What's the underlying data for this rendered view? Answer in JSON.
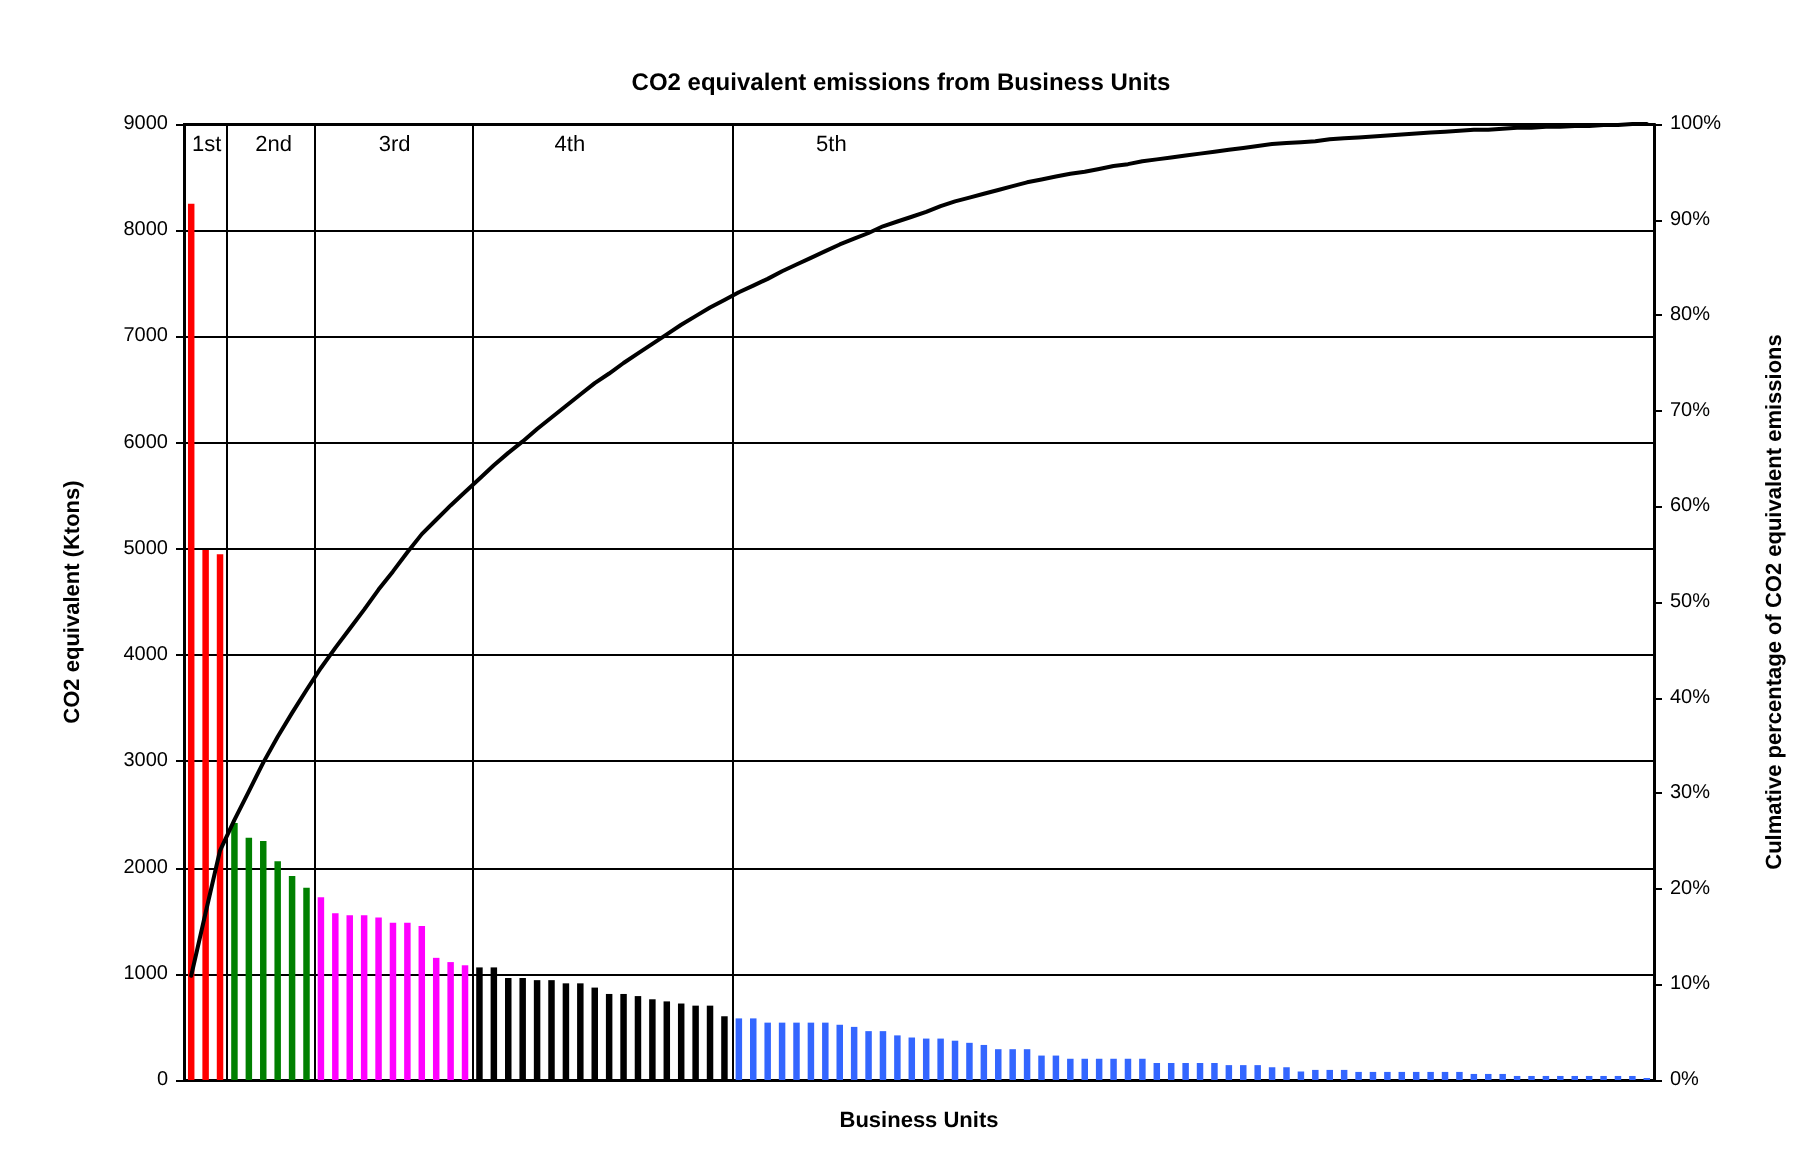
{
  "chart_data": {
    "type": "bar",
    "title": "CO2 equivalent emissions from Business Units",
    "xlabel": "Business Units",
    "ylabel": "CO2 equivalent (Ktons)",
    "y2label": "Culmative percentage of CO2 equivalent emissions",
    "annotations": [
      "1st",
      "2nd",
      "3rd",
      "4th",
      "5th"
    ],
    "categories": [
      null,
      null,
      null,
      null,
      null,
      null,
      null,
      null,
      null,
      null,
      null,
      null,
      null,
      null,
      null,
      null,
      null,
      null,
      null,
      null,
      null,
      null,
      null,
      null,
      null,
      null,
      null,
      null,
      null,
      null,
      null,
      null,
      null,
      null,
      null,
      null,
      null,
      null,
      null,
      null,
      null,
      null,
      null,
      null,
      null,
      null,
      null,
      null,
      null,
      null,
      null,
      null,
      null,
      null,
      null,
      null,
      null,
      null,
      null,
      null,
      null,
      null,
      null,
      null,
      null,
      null,
      null,
      null,
      null,
      null,
      null,
      null,
      null,
      null,
      null,
      null,
      null,
      null,
      null,
      null,
      null,
      null,
      null,
      null,
      null,
      null,
      null,
      null,
      null,
      null,
      null,
      null,
      null,
      null,
      null,
      null,
      null,
      null,
      null,
      null,
      null,
      null
    ],
    "ylim": [
      0,
      9000
    ],
    "yticks": [
      0,
      1000,
      2000,
      3000,
      4000,
      5000,
      6000,
      7000,
      8000,
      9000
    ],
    "y2lim": [
      0,
      100
    ],
    "y2ticks": [
      {
        "value": 0,
        "label": "0%"
      },
      {
        "value": 10,
        "label": "10%"
      },
      {
        "value": 20,
        "label": "20%"
      },
      {
        "value": 30,
        "label": "30%"
      },
      {
        "value": 40,
        "label": "40%"
      },
      {
        "value": 50,
        "label": "50%"
      },
      {
        "value": 60,
        "label": "60%"
      },
      {
        "value": 70,
        "label": "70%"
      },
      {
        "value": 80,
        "label": "80%"
      },
      {
        "value": 90,
        "label": "90%"
      },
      {
        "value": 100,
        "label": "100%"
      }
    ],
    "grid": "y",
    "marker": "none",
    "line_style": "solid",
    "series": [
      {
        "values": [
          8250,
          4990,
          4950,
          2420,
          2280,
          2250,
          2060,
          1920,
          1810,
          1720,
          1570,
          1550,
          1550,
          1530,
          1480,
          1480,
          1450,
          1150,
          1110,
          1080,
          1060,
          1060,
          960,
          960,
          940,
          940,
          910,
          910,
          870,
          810,
          810,
          790,
          760,
          740,
          720,
          700,
          700,
          600,
          580,
          580,
          540,
          540,
          540,
          540,
          540,
          520,
          500,
          460,
          460,
          420,
          400,
          390,
          390,
          370,
          350,
          330,
          290,
          290,
          290,
          230,
          230,
          200,
          200,
          200,
          200,
          200,
          200,
          160,
          160,
          160,
          160,
          160,
          140,
          140,
          140,
          120,
          120,
          80,
          95,
          95,
          95,
          76,
          76,
          76,
          76,
          76,
          76,
          76,
          76,
          57,
          57,
          57,
          38,
          38,
          38,
          38,
          38,
          38,
          38,
          38,
          38,
          19
        ],
        "colors": [
          "#ff0000",
          "#ff0000",
          "#ff0000",
          "#008000",
          "#008000",
          "#008000",
          "#008000",
          "#008000",
          "#008000",
          "#ff00ff",
          "#ff00ff",
          "#ff00ff",
          "#ff00ff",
          "#ff00ff",
          "#ff00ff",
          "#ff00ff",
          "#ff00ff",
          "#ff00ff",
          "#ff00ff",
          "#ff00ff",
          "#000000",
          "#000000",
          "#000000",
          "#000000",
          "#000000",
          "#000000",
          "#000000",
          "#000000",
          "#000000",
          "#000000",
          "#000000",
          "#000000",
          "#000000",
          "#000000",
          "#000000",
          "#000000",
          "#000000",
          "#000000",
          "#3366ff",
          "#3366ff",
          "#3366ff",
          "#3366ff",
          "#3366ff",
          "#3366ff",
          "#3366ff",
          "#3366ff",
          "#3366ff",
          "#3366ff",
          "#3366ff",
          "#3366ff",
          "#3366ff",
          "#3366ff",
          "#3366ff",
          "#3366ff",
          "#3366ff",
          "#3366ff",
          "#3366ff",
          "#3366ff",
          "#3366ff",
          "#3366ff",
          "#3366ff",
          "#3366ff",
          "#3366ff",
          "#3366ff",
          "#3366ff",
          "#3366ff",
          "#3366ff",
          "#3366ff",
          "#3366ff",
          "#3366ff",
          "#3366ff",
          "#3366ff",
          "#3366ff",
          "#3366ff",
          "#3366ff",
          "#3366ff",
          "#3366ff",
          "#3366ff",
          "#3366ff",
          "#3366ff",
          "#3366ff",
          "#3366ff",
          "#3366ff",
          "#3366ff",
          "#3366ff",
          "#3366ff",
          "#3366ff",
          "#3366ff",
          "#3366ff",
          "#3366ff",
          "#3366ff",
          "#3366ff",
          "#3366ff",
          "#3366ff",
          "#3366ff",
          "#3366ff",
          "#3366ff",
          "#3366ff",
          "#3366ff",
          "#3366ff",
          "#3366ff",
          "#3366ff"
        ]
      },
      {
        "type": "line",
        "axis": "y2",
        "color": "#000000",
        "values": [
          10.9,
          17.5,
          24.0,
          27.2,
          30.2,
          33.2,
          35.9,
          38.4,
          40.8,
          43.1,
          45.2,
          47.2,
          49.2,
          51.3,
          53.2,
          55.2,
          57.1,
          58.6,
          60.1,
          61.5,
          62.9,
          64.3,
          65.6,
          66.8,
          68.1,
          69.3,
          70.5,
          71.7,
          72.9,
          73.9,
          75.0,
          76.0,
          77.0,
          78.0,
          79.0,
          79.9,
          80.8,
          81.6,
          82.4,
          83.1,
          83.8,
          84.6,
          85.3,
          86.0,
          86.7,
          87.4,
          88.0,
          88.6,
          89.3,
          89.8,
          90.3,
          90.8,
          91.4,
          91.9,
          92.3,
          92.7,
          93.1,
          93.5,
          93.9,
          94.2,
          94.5,
          94.8,
          95.0,
          95.3,
          95.6,
          95.8,
          96.1,
          96.3,
          96.5,
          96.7,
          96.9,
          97.1,
          97.3,
          97.5,
          97.7,
          97.9,
          98.0,
          98.1,
          98.2,
          98.4,
          98.5,
          98.6,
          98.7,
          98.8,
          98.9,
          99.0,
          99.1,
          99.2,
          99.3,
          99.4,
          99.4,
          99.5,
          99.6,
          99.6,
          99.7,
          99.7,
          99.8,
          99.8,
          99.9,
          99.9,
          100.0,
          100
        ]
      }
    ]
  }
}
